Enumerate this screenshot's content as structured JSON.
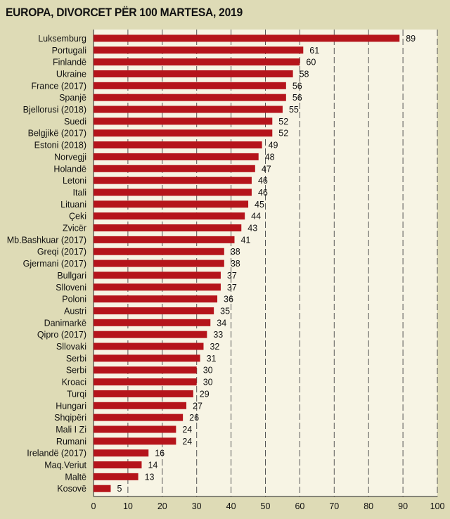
{
  "chart_data": {
    "type": "bar",
    "orientation": "horizontal",
    "title": "EUROPA, DIVORCET PËR 100 MARTESA, 2019",
    "categories": [
      "Luksemburg",
      "Portugali",
      "Finlandë",
      "Ukraine",
      "France (2017)",
      "Spanjë",
      "Bjellorusi (2018)",
      "Suedi",
      "Belgjikë (2017)",
      "Estoni (2018)",
      "Norvegji",
      "Holandë",
      "Letoni",
      "Itali",
      "Lituani",
      "Çeki",
      "Zvicër",
      "Mb.Bashkuar (2017)",
      "Greqi (2017)",
      "Gjermani (2017)",
      "Bullgari",
      "Slloveni",
      "Poloni",
      "Austri",
      "Danimarkë",
      "Qipro (2017)",
      "Sllovaki",
      "Serbi",
      "Serbi",
      "Kroaci",
      "Turqi",
      "Hungari",
      "Shqipëri",
      "Mali I Zi",
      "Rumani",
      "Irelandë (2017)",
      "Maq.Veriut",
      "Maltë",
      "Kosovë"
    ],
    "values": [
      89,
      61,
      60,
      58,
      56,
      56,
      55,
      52,
      52,
      49,
      48,
      47,
      46,
      46,
      45,
      44,
      43,
      41,
      38,
      38,
      37,
      37,
      36,
      35,
      34,
      33,
      32,
      31,
      30,
      30,
      29,
      27,
      26,
      24,
      24,
      16,
      14,
      13,
      5
    ],
    "xlim": [
      0,
      100
    ],
    "xticks": [
      0,
      10,
      20,
      30,
      40,
      50,
      60,
      70,
      80,
      90,
      100
    ],
    "grid": "vertical dashed",
    "bar_color": "#b5141b",
    "plot_background": "#f7f4e4",
    "page_background": "#dedbb6"
  }
}
